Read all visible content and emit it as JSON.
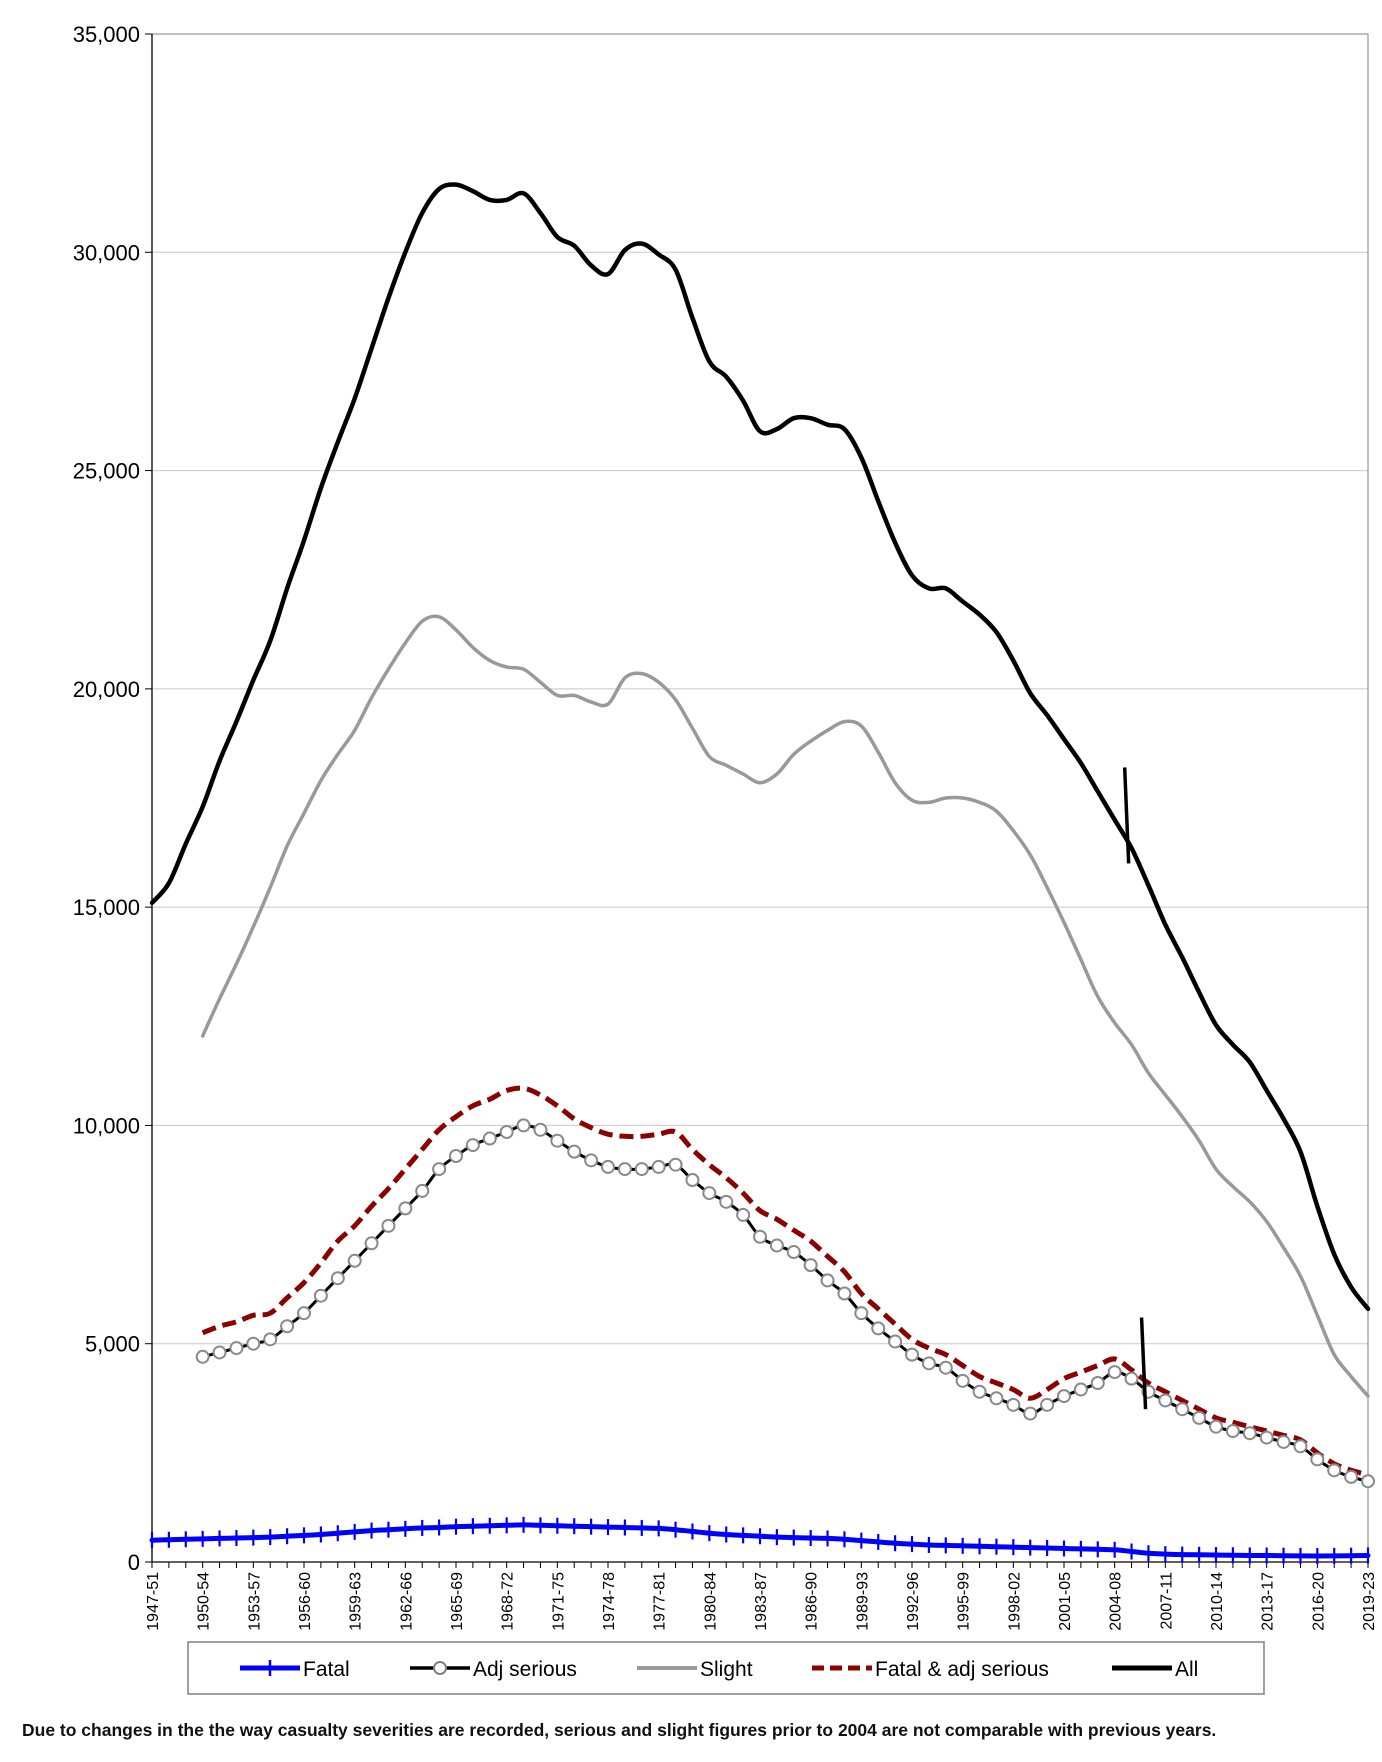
{
  "chart_data": {
    "type": "line",
    "title": "",
    "xlabel": "",
    "ylabel": "",
    "ylim": [
      0,
      35000
    ],
    "yticks": [
      0,
      5000,
      10000,
      15000,
      20000,
      25000,
      30000,
      35000
    ],
    "ytick_labels": [
      "0",
      "5,000",
      "10,000",
      "15,000",
      "20,000",
      "25,000",
      "30,000",
      "35,000"
    ],
    "grid": true,
    "legend_position": "bottom",
    "x": [
      "1947-51",
      "1948-52",
      "1949-53",
      "1950-54",
      "1951-55",
      "1952-56",
      "1953-57",
      "1954-58",
      "1955-59",
      "1956-60",
      "1957-61",
      "1958-62",
      "1959-63",
      "1960-64",
      "1961-65",
      "1962-66",
      "1963-67",
      "1964-68",
      "1965-69",
      "1966-70",
      "1967-71",
      "1968-72",
      "1969-73",
      "1970-74",
      "1971-75",
      "1972-76",
      "1973-77",
      "1974-78",
      "1975-79",
      "1976-80",
      "1977-81",
      "1978-82",
      "1979-83",
      "1980-84",
      "1981-85",
      "1982-86",
      "1983-87",
      "1984-88",
      "1985-89",
      "1986-90",
      "1987-91",
      "1988-92",
      "1989-93",
      "1990-94",
      "1991-95",
      "1992-96",
      "1993-97",
      "1994-98",
      "1995-99",
      "1996-00",
      "1997-01",
      "1998-02",
      "1999-03",
      "2000-04",
      "2001-05",
      "2002-06",
      "2003-07",
      "2004-08",
      "2005-09",
      "2006-10",
      "2007-11",
      "2008-12",
      "2009-13",
      "2010-14",
      "2011-15",
      "2012-16",
      "2013-17",
      "2014-18",
      "2015-19",
      "2016-20",
      "2017-21",
      "2018-22",
      "2019-23"
    ],
    "x_tick_labels_shown": [
      "1947-51",
      "1950-54",
      "1953-57",
      "1956-60",
      "1959-63",
      "1962-66",
      "1965-69",
      "1968-72",
      "1971-75",
      "1974-78",
      "1977-81",
      "1980-84",
      "1983-87",
      "1986-90",
      "1989-93",
      "1992-96",
      "1995-99",
      "1998-02",
      "2001-05",
      "2004-08",
      "2007-11",
      "2010-14",
      "2013-17",
      "2016-20",
      "2019-23"
    ],
    "series": [
      {
        "name": "Fatal",
        "color": "#0000ff",
        "style": "solid-cross",
        "values": [
          500,
          510,
          520,
          530,
          540,
          550,
          560,
          570,
          590,
          610,
          630,
          660,
          690,
          720,
          740,
          760,
          780,
          790,
          810,
          820,
          830,
          840,
          850,
          840,
          830,
          820,
          810,
          800,
          790,
          780,
          770,
          740,
          700,
          660,
          630,
          610,
          590,
          570,
          560,
          550,
          540,
          520,
          490,
          460,
          430,
          410,
          390,
          380,
          370,
          360,
          350,
          340,
          330,
          320,
          310,
          300,
          290,
          280,
          240,
          200,
          180,
          170,
          165,
          160,
          155,
          150,
          148,
          145,
          140,
          138,
          140,
          145,
          150
        ]
      },
      {
        "name": "Adj serious",
        "color": "#000000",
        "style": "solid-circle-marker",
        "values": [
          null,
          null,
          null,
          4700,
          4800,
          4900,
          5000,
          5100,
          5400,
          5700,
          6100,
          6500,
          6900,
          7300,
          7700,
          8100,
          8500,
          9000,
          9300,
          9550,
          9700,
          9850,
          10000,
          9900,
          9650,
          9400,
          9200,
          9050,
          9000,
          9000,
          9050,
          9100,
          8750,
          8450,
          8250,
          7950,
          7450,
          7250,
          7100,
          6800,
          6450,
          6150,
          5700,
          5350,
          5050,
          4750,
          4550,
          4450,
          4150,
          3900,
          3750,
          3600,
          3400,
          3600,
          3800,
          3950,
          4100,
          4350,
          4200,
          3900,
          3700,
          3500,
          3300,
          3100,
          3000,
          2950,
          2850,
          2750,
          2650,
          2350,
          2100,
          1950,
          1850
        ]
      },
      {
        "name": "Slight",
        "color": "#999999",
        "style": "solid",
        "values": [
          null,
          null,
          null,
          12050,
          12900,
          13700,
          14550,
          15450,
          16400,
          17150,
          17900,
          18500,
          19050,
          19800,
          20450,
          21050,
          21550,
          21650,
          21350,
          20950,
          20650,
          20500,
          20450,
          20150,
          19850,
          19850,
          19700,
          19650,
          20250,
          20350,
          20150,
          19750,
          19100,
          18450,
          18250,
          18050,
          17850,
          18050,
          18500,
          18800,
          19050,
          19250,
          19150,
          18550,
          17850,
          17450,
          17400,
          17500,
          17500,
          17400,
          17200,
          16750,
          16200,
          15450,
          14650,
          13800,
          12950,
          12350,
          11850,
          11200,
          10700,
          10200,
          9650,
          9000,
          8600,
          8250,
          7800,
          7200,
          6550,
          5650,
          4750,
          4250,
          3800
        ]
      },
      {
        "name": "Fatal & adj serious",
        "color": "#8b0000",
        "style": "dashed",
        "values": [
          null,
          null,
          null,
          5250,
          5400,
          5500,
          5650,
          5700,
          6050,
          6400,
          6850,
          7350,
          7700,
          8150,
          8550,
          9000,
          9450,
          9900,
          10200,
          10450,
          10600,
          10800,
          10850,
          10700,
          10450,
          10150,
          9950,
          9800,
          9750,
          9750,
          9800,
          9850,
          9450,
          9100,
          8800,
          8450,
          8050,
          7850,
          7600,
          7350,
          7000,
          6650,
          6150,
          5800,
          5450,
          5100,
          4900,
          4750,
          4500,
          4250,
          4100,
          3950,
          3750,
          3950,
          4200,
          4350,
          4500,
          4650,
          4400,
          4100,
          3900,
          3700,
          3500,
          3300,
          3200,
          3100,
          3000,
          2900,
          2800,
          2500,
          2250,
          2100,
          2000
        ]
      },
      {
        "name": "All",
        "color": "#000000",
        "style": "solid-thick",
        "values": [
          15100,
          15550,
          16450,
          17300,
          18350,
          19250,
          20200,
          21100,
          22300,
          23400,
          24600,
          25650,
          26650,
          27800,
          28950,
          30000,
          30900,
          31450,
          31550,
          31400,
          31200,
          31200,
          31350,
          30900,
          30350,
          30150,
          29700,
          29500,
          30050,
          30200,
          29950,
          29600,
          28500,
          27500,
          27150,
          26600,
          25900,
          25950,
          26200,
          26200,
          26050,
          25950,
          25300,
          24300,
          23350,
          22600,
          22300,
          22300,
          22000,
          21700,
          21300,
          20650,
          19900,
          19400,
          18850,
          18300,
          17650,
          17000,
          16350,
          15500,
          14600,
          13850,
          13050,
          12300,
          11850,
          11450,
          10800,
          10150,
          9400,
          8150,
          7050,
          6300,
          5800
        ]
      }
    ],
    "annotations": [
      {
        "type": "vertical-marker",
        "series": "All",
        "at": "2004-08",
        "from": 16000,
        "to": 18200
      },
      {
        "type": "vertical-marker",
        "series": "Fatal & adj serious",
        "at": "2005-09",
        "from": 3500,
        "to": 5600
      }
    ]
  },
  "legend": {
    "items": [
      {
        "label": "Fatal",
        "color": "#0000ff"
      },
      {
        "label": "Adj serious",
        "color": "#000000"
      },
      {
        "label": "Slight",
        "color": "#999999"
      },
      {
        "label": "Fatal & adj serious",
        "color": "#8b0000"
      },
      {
        "label": "All",
        "color": "#000000"
      }
    ]
  },
  "footnote": "Due to changes in the the way casualty severities are recorded, serious and slight figures prior to 2004 are not comparable with previous years."
}
